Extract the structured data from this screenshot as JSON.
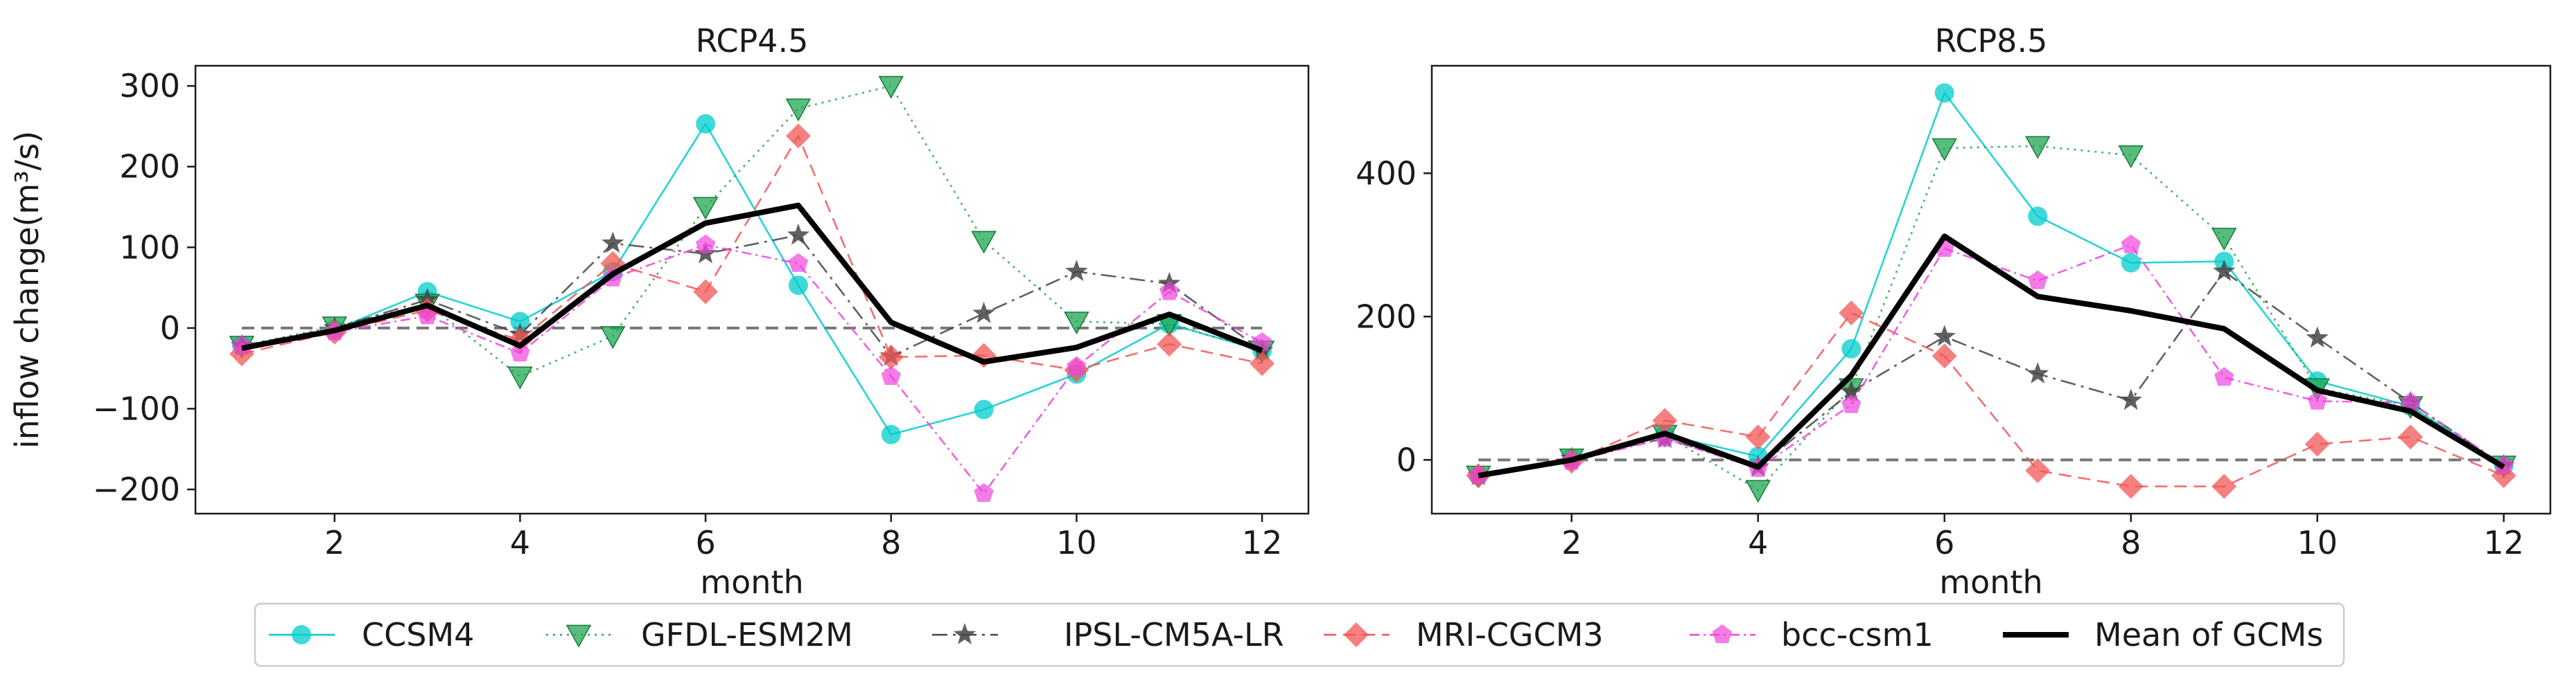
{
  "chart_data": [
    {
      "type": "line",
      "title": "RCP4.5",
      "xlabel": "month",
      "ylabel": "inflow change(m³/s)",
      "xlim": [
        0.5,
        12.5
      ],
      "ylim": [
        -230,
        325
      ],
      "xticks": [
        2,
        4,
        6,
        8,
        10,
        12
      ],
      "yticks": [
        -200,
        -100,
        0,
        100,
        200,
        300
      ],
      "x": [
        1,
        2,
        3,
        4,
        5,
        6,
        7,
        8,
        9,
        10,
        11,
        12
      ],
      "series": [
        {
          "name": "CCSM4",
          "values": [
            -22,
            -2,
            45,
            8,
            70,
            253,
            53,
            -132,
            -101,
            -57,
            5,
            -28
          ]
        },
        {
          "name": "GFDL-ESM2M",
          "values": [
            -22,
            2,
            30,
            -60,
            -10,
            150,
            272,
            300,
            108,
            8,
            5,
            -28
          ]
        },
        {
          "name": "IPSL-CM5A-LR",
          "values": [
            -22,
            0,
            35,
            -8,
            105,
            92,
            115,
            -35,
            18,
            70,
            55,
            -28
          ]
        },
        {
          "name": "MRI-CGCM3",
          "values": [
            -32,
            -5,
            22,
            -15,
            80,
            45,
            238,
            -36,
            -34,
            -52,
            -20,
            -44
          ]
        },
        {
          "name": "bcc-csm1",
          "values": [
            -22,
            -5,
            15,
            -31,
            62,
            103,
            80,
            -60,
            -205,
            -48,
            45,
            -18
          ]
        },
        {
          "name": "Mean of GCMs",
          "values": [
            -25,
            -3,
            28,
            -22,
            67,
            130,
            152,
            7,
            -42,
            -24,
            17,
            -28
          ]
        }
      ],
      "baseline": 0
    },
    {
      "type": "line",
      "title": "RCP8.5",
      "xlabel": "month",
      "ylabel": "",
      "xlim": [
        0.5,
        12.5
      ],
      "ylim": [
        -75,
        550
      ],
      "xticks": [
        2,
        4,
        6,
        8,
        10,
        12
      ],
      "yticks": [
        0,
        200,
        400
      ],
      "x": [
        1,
        2,
        3,
        4,
        5,
        6,
        7,
        8,
        9,
        10,
        11,
        12
      ],
      "series": [
        {
          "name": "CCSM4",
          "values": [
            -22,
            2,
            35,
            5,
            155,
            512,
            340,
            275,
            277,
            110,
            75,
            -8
          ]
        },
        {
          "name": "GFDL-ESM2M",
          "values": [
            -22,
            2,
            35,
            -42,
            100,
            435,
            438,
            425,
            310,
            100,
            75,
            -8
          ]
        },
        {
          "name": "IPSL-CM5A-LR",
          "values": [
            -22,
            2,
            30,
            -10,
            95,
            172,
            120,
            83,
            263,
            170,
            80,
            -8
          ]
        },
        {
          "name": "MRI-CGCM3",
          "values": [
            -22,
            -2,
            55,
            32,
            205,
            145,
            -15,
            -37,
            -37,
            22,
            32,
            -22
          ]
        },
        {
          "name": "bcc-csm1",
          "values": [
            -22,
            -2,
            30,
            -12,
            77,
            295,
            250,
            300,
            115,
            82,
            80,
            -8
          ]
        },
        {
          "name": "Mean of GCMs",
          "values": [
            -22,
            0,
            37,
            -10,
            118,
            312,
            228,
            208,
            183,
            97,
            68,
            -10
          ]
        }
      ],
      "baseline": 0
    }
  ],
  "legend": {
    "items": [
      {
        "label": "CCSM4",
        "color": "#00cccc",
        "marker": "circle",
        "dash": "solid"
      },
      {
        "label": "GFDL-ESM2M",
        "color": "#1fa750",
        "marker": "triangle-down",
        "dash": "dotted"
      },
      {
        "label": "IPSL-CM5A-LR",
        "color": "#444444",
        "marker": "star",
        "dash": "dashdot"
      },
      {
        "label": "MRI-CGCM3",
        "color": "#f25555",
        "marker": "diamond",
        "dash": "dashed"
      },
      {
        "label": "bcc-csm1",
        "color": "#ee44dd",
        "marker": "pentagon",
        "dash": "dashdot2"
      },
      {
        "label": "Mean of GCMs",
        "color": "#000000",
        "marker": "none",
        "dash": "solid-thick"
      }
    ]
  }
}
